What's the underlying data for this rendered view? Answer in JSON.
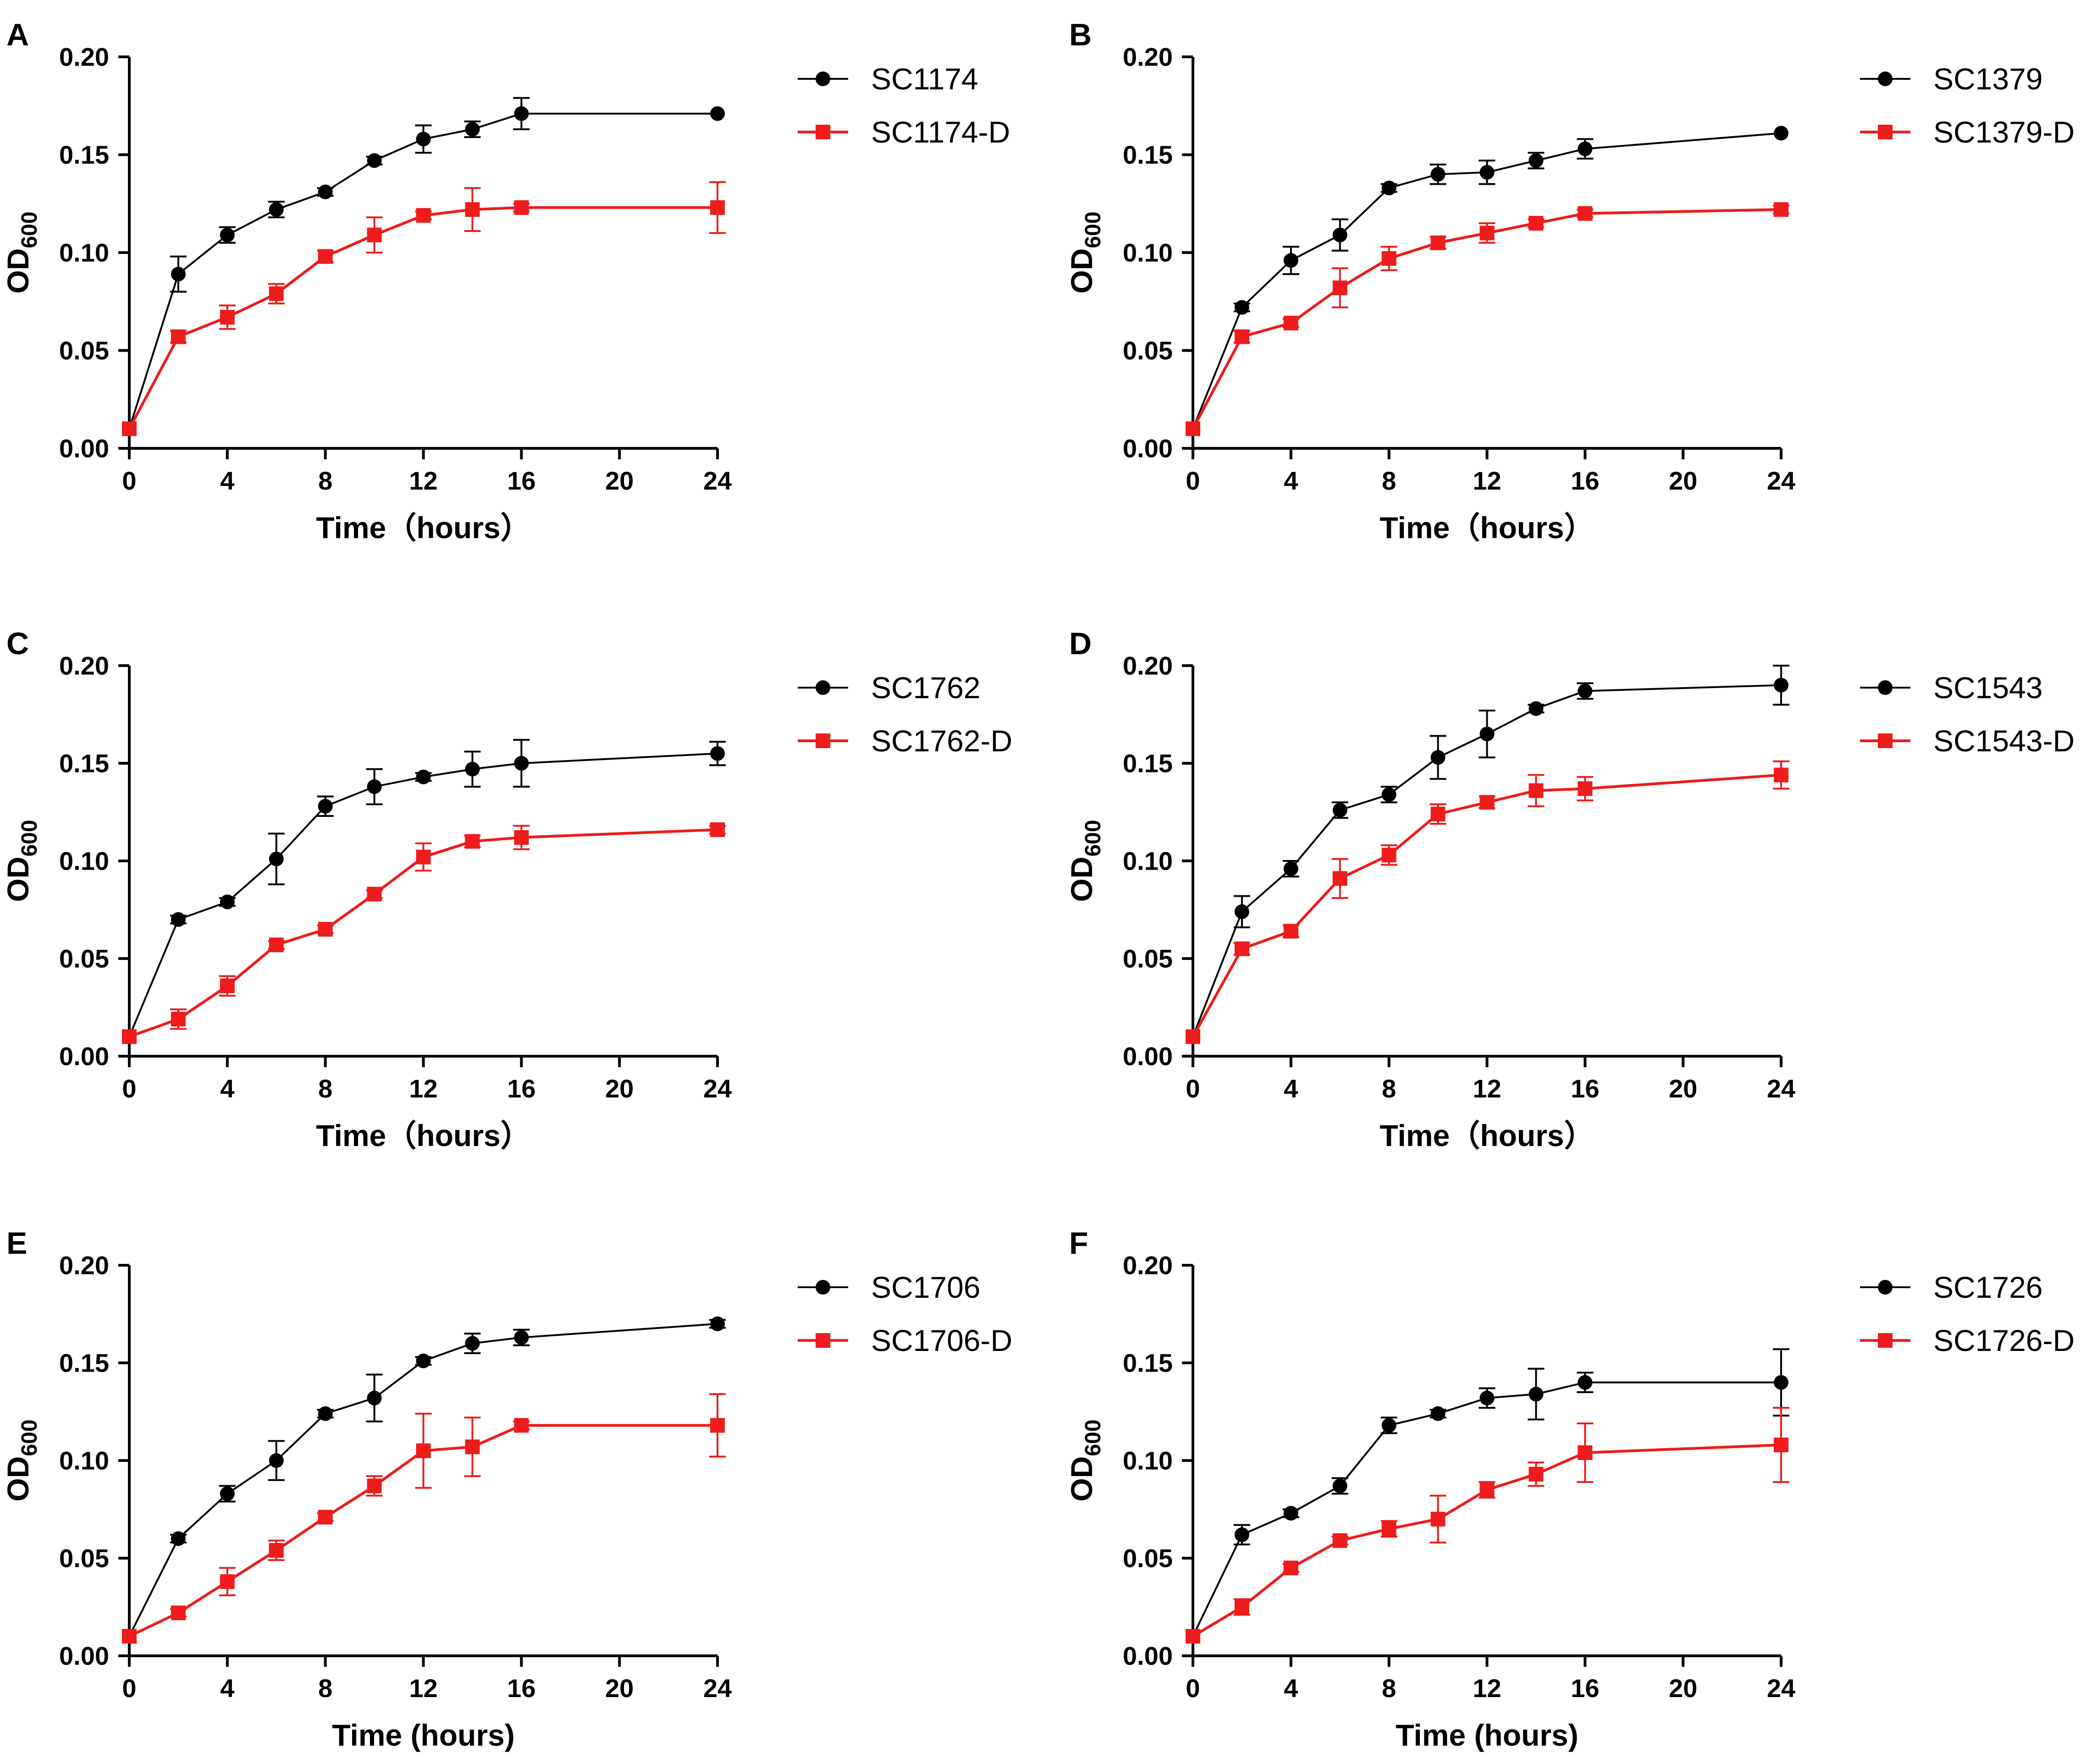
{
  "chart_data": [
    {
      "type": "line",
      "panel": "A",
      "x": [
        0,
        2,
        4,
        6,
        8,
        10,
        12,
        14,
        16,
        24
      ],
      "xticks": [
        "0",
        "4",
        "8",
        "12",
        "16",
        "20",
        "24"
      ],
      "yticks": [
        "0.00",
        "0.05",
        "0.10",
        "0.15",
        "0.20"
      ],
      "xlim": [
        0,
        24
      ],
      "ylim": [
        0,
        0.2
      ],
      "xlabel": "Time（hours）",
      "ylabel": "OD",
      "ylabel_sub": "600",
      "series": [
        {
          "name": "SC1174",
          "color": "#000000",
          "marker": "circle",
          "values": [
            0.01,
            0.089,
            0.109,
            0.122,
            0.131,
            0.147,
            0.158,
            0.163,
            0.171,
            0.171
          ],
          "errors": [
            0,
            0.009,
            0.004,
            0.004,
            0.002,
            0.002,
            0.007,
            0.004,
            0.008,
            0
          ]
        },
        {
          "name": "SC1174-D",
          "color": "#ee1c1c",
          "marker": "square",
          "values": [
            0.01,
            0.057,
            0.067,
            0.079,
            0.098,
            0.109,
            0.119,
            0.122,
            0.123,
            0.123
          ],
          "errors": [
            0,
            0.003,
            0.006,
            0.005,
            0.003,
            0.009,
            0.002,
            0.011,
            0.002,
            0.013
          ]
        }
      ]
    },
    {
      "type": "line",
      "panel": "B",
      "x": [
        0,
        2,
        4,
        6,
        8,
        10,
        12,
        14,
        16,
        24
      ],
      "xticks": [
        "0",
        "4",
        "8",
        "12",
        "16",
        "20",
        "24"
      ],
      "yticks": [
        "0.00",
        "0.05",
        "0.10",
        "0.15",
        "0.20"
      ],
      "xlim": [
        0,
        24
      ],
      "ylim": [
        0,
        0.2
      ],
      "xlabel": "Time（hours）",
      "ylabel": "OD",
      "ylabel_sub": "600",
      "series": [
        {
          "name": "SC1379",
          "color": "#000000",
          "marker": "circle",
          "values": [
            0.01,
            0.072,
            0.096,
            0.109,
            0.133,
            0.14,
            0.141,
            0.147,
            0.153,
            0.161
          ],
          "errors": [
            0,
            0.002,
            0.007,
            0.008,
            0.002,
            0.005,
            0.006,
            0.004,
            0.005,
            0
          ]
        },
        {
          "name": "SC1379-D",
          "color": "#ee1c1c",
          "marker": "square",
          "values": [
            0.01,
            0.057,
            0.064,
            0.082,
            0.097,
            0.105,
            0.11,
            0.115,
            0.12,
            0.122
          ],
          "errors": [
            0,
            0.003,
            0.002,
            0.01,
            0.006,
            0.003,
            0.005,
            0.002,
            0.002,
            0.002
          ]
        }
      ]
    },
    {
      "type": "line",
      "panel": "C",
      "x": [
        0,
        2,
        4,
        6,
        8,
        10,
        12,
        14,
        16,
        24
      ],
      "xticks": [
        "0",
        "4",
        "8",
        "12",
        "16",
        "20",
        "24"
      ],
      "yticks": [
        "0.00",
        "0.05",
        "0.10",
        "0.15",
        "0.20"
      ],
      "xlim": [
        0,
        24
      ],
      "ylim": [
        0,
        0.2
      ],
      "xlabel": "Time（hours）",
      "ylabel": "OD",
      "ylabel_sub": "600",
      "series": [
        {
          "name": "SC1762",
          "color": "#000000",
          "marker": "circle",
          "values": [
            0.01,
            0.07,
            0.079,
            0.101,
            0.128,
            0.138,
            0.143,
            0.147,
            0.15,
            0.155
          ],
          "errors": [
            0,
            0.002,
            0.002,
            0.013,
            0.005,
            0.009,
            0.002,
            0.009,
            0.012,
            0.006
          ]
        },
        {
          "name": "SC1762-D",
          "color": "#ee1c1c",
          "marker": "square",
          "values": [
            0.01,
            0.019,
            0.036,
            0.057,
            0.065,
            0.083,
            0.102,
            0.11,
            0.112,
            0.116
          ],
          "errors": [
            0,
            0.005,
            0.005,
            0.002,
            0.002,
            0.002,
            0.007,
            0.003,
            0.006,
            0.002
          ]
        }
      ]
    },
    {
      "type": "line",
      "panel": "D",
      "x": [
        0,
        2,
        4,
        6,
        8,
        10,
        12,
        14,
        16,
        24
      ],
      "xticks": [
        "0",
        "4",
        "8",
        "12",
        "16",
        "20",
        "24"
      ],
      "yticks": [
        "0.00",
        "0.05",
        "0.10",
        "0.15",
        "0.20"
      ],
      "xlim": [
        0,
        24
      ],
      "ylim": [
        0,
        0.2
      ],
      "xlabel": "Time（hours）",
      "ylabel": "OD",
      "ylabel_sub": "600",
      "series": [
        {
          "name": "SC1543",
          "color": "#000000",
          "marker": "circle",
          "values": [
            0.01,
            0.074,
            0.096,
            0.126,
            0.134,
            0.153,
            0.165,
            0.178,
            0.187,
            0.19
          ],
          "errors": [
            0,
            0.008,
            0.004,
            0.004,
            0.004,
            0.011,
            0.012,
            0.002,
            0.004,
            0.01
          ]
        },
        {
          "name": "SC1543-D",
          "color": "#ee1c1c",
          "marker": "square",
          "values": [
            0.01,
            0.055,
            0.064,
            0.091,
            0.103,
            0.124,
            0.13,
            0.136,
            0.137,
            0.144
          ],
          "errors": [
            0,
            0.003,
            0.003,
            0.01,
            0.005,
            0.005,
            0.003,
            0.008,
            0.006,
            0.007
          ]
        }
      ]
    },
    {
      "type": "line",
      "panel": "E",
      "x": [
        0,
        2,
        4,
        6,
        8,
        10,
        12,
        14,
        16,
        24
      ],
      "xticks": [
        "0",
        "4",
        "8",
        "12",
        "16",
        "20",
        "24"
      ],
      "yticks": [
        "0.00",
        "0.05",
        "0.10",
        "0.15",
        "0.20"
      ],
      "xlim": [
        0,
        24
      ],
      "ylim": [
        0,
        0.2
      ],
      "xlabel": "Time (hours)",
      "ylabel": "OD",
      "ylabel_sub": "600",
      "series": [
        {
          "name": "SC1706",
          "color": "#000000",
          "marker": "circle",
          "values": [
            0.01,
            0.06,
            0.083,
            0.1,
            0.124,
            0.132,
            0.151,
            0.16,
            0.163,
            0.17
          ],
          "errors": [
            0,
            0.002,
            0.004,
            0.01,
            0.002,
            0.012,
            0.002,
            0.005,
            0.004,
            0.002
          ]
        },
        {
          "name": "SC1706-D",
          "color": "#ee1c1c",
          "marker": "square",
          "values": [
            0.01,
            0.022,
            0.038,
            0.054,
            0.071,
            0.087,
            0.105,
            0.107,
            0.118,
            0.118
          ],
          "errors": [
            0,
            0.002,
            0.007,
            0.005,
            0.002,
            0.005,
            0.019,
            0.015,
            0.002,
            0.016
          ]
        }
      ]
    },
    {
      "type": "line",
      "panel": "F",
      "x": [
        0,
        2,
        4,
        6,
        8,
        10,
        12,
        14,
        16,
        24
      ],
      "xticks": [
        "0",
        "4",
        "8",
        "12",
        "16",
        "20",
        "24"
      ],
      "yticks": [
        "0.00",
        "0.05",
        "0.10",
        "0.15",
        "0.20"
      ],
      "xlim": [
        0,
        24
      ],
      "ylim": [
        0,
        0.2
      ],
      "xlabel": "Time (hours)",
      "ylabel": "OD",
      "ylabel_sub": "600",
      "series": [
        {
          "name": "SC1726",
          "color": "#000000",
          "marker": "circle",
          "values": [
            0.01,
            0.062,
            0.073,
            0.087,
            0.118,
            0.124,
            0.132,
            0.134,
            0.14,
            0.14
          ],
          "errors": [
            0,
            0.005,
            0.002,
            0.004,
            0.004,
            0.002,
            0.005,
            0.013,
            0.005,
            0.017
          ]
        },
        {
          "name": "SC1726-D",
          "color": "#ee1c1c",
          "marker": "square",
          "values": [
            0.01,
            0.025,
            0.045,
            0.059,
            0.065,
            0.07,
            0.085,
            0.093,
            0.104,
            0.108
          ],
          "errors": [
            0,
            0.004,
            0.002,
            0.002,
            0.004,
            0.012,
            0.004,
            0.006,
            0.015,
            0.019
          ]
        }
      ]
    }
  ]
}
